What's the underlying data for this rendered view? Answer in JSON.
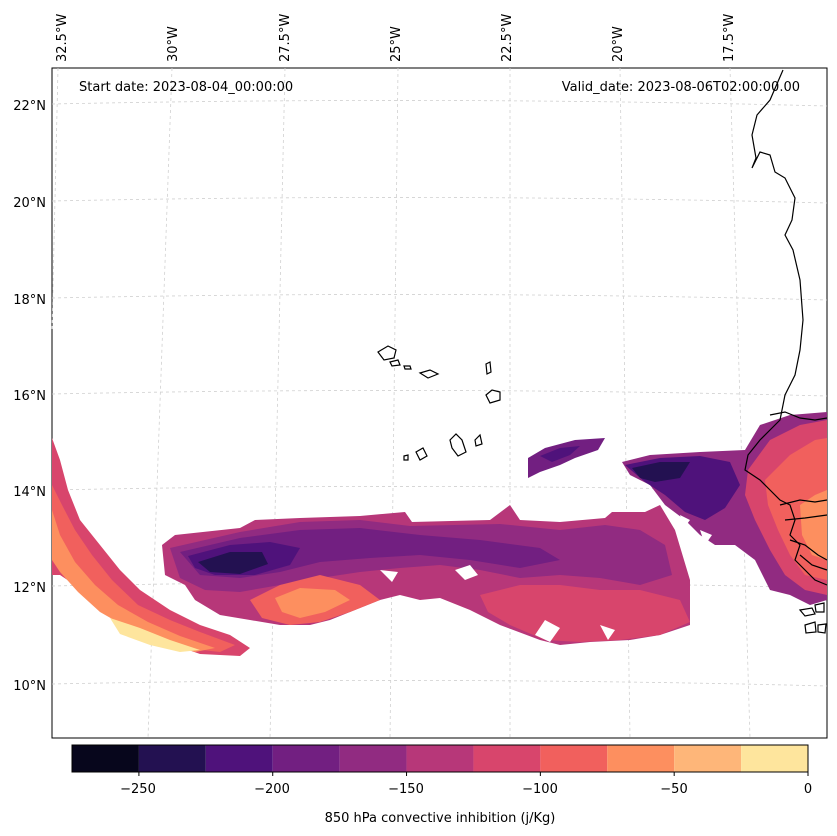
{
  "header": {
    "start_date": "Start date: 2023-08-04_00:00:00",
    "valid_date": "Valid_date: 2023-08-06T02:00:00.00"
  },
  "axes": {
    "lon_labels": [
      "32.5°W",
      "30°W",
      "27.5°W",
      "25°W",
      "22.5°W",
      "20°W",
      "17.5°W"
    ],
    "lat_labels": [
      "22°N",
      "20°N",
      "18°N",
      "16°N",
      "14°N",
      "12°N",
      "10°N"
    ]
  },
  "colorbar": {
    "label": "850 hPa convective inhibition (j/Kg)",
    "tick_labels": [
      "−250",
      "−200",
      "−150",
      "−100",
      "−50",
      "0"
    ],
    "levels": [
      -275,
      -250,
      -225,
      -200,
      -175,
      -150,
      -125,
      -100,
      -75,
      -50,
      -25,
      0
    ],
    "colors": [
      "#07061c",
      "#231151",
      "#4f127b",
      "#721f81",
      "#912b81",
      "#b73779",
      "#d8456c",
      "#f1605d",
      "#fd8f5f",
      "#feb679",
      "#fee59d"
    ]
  },
  "colors": {
    "gridline": "#d0d0d0",
    "coastline": "#000000"
  }
}
